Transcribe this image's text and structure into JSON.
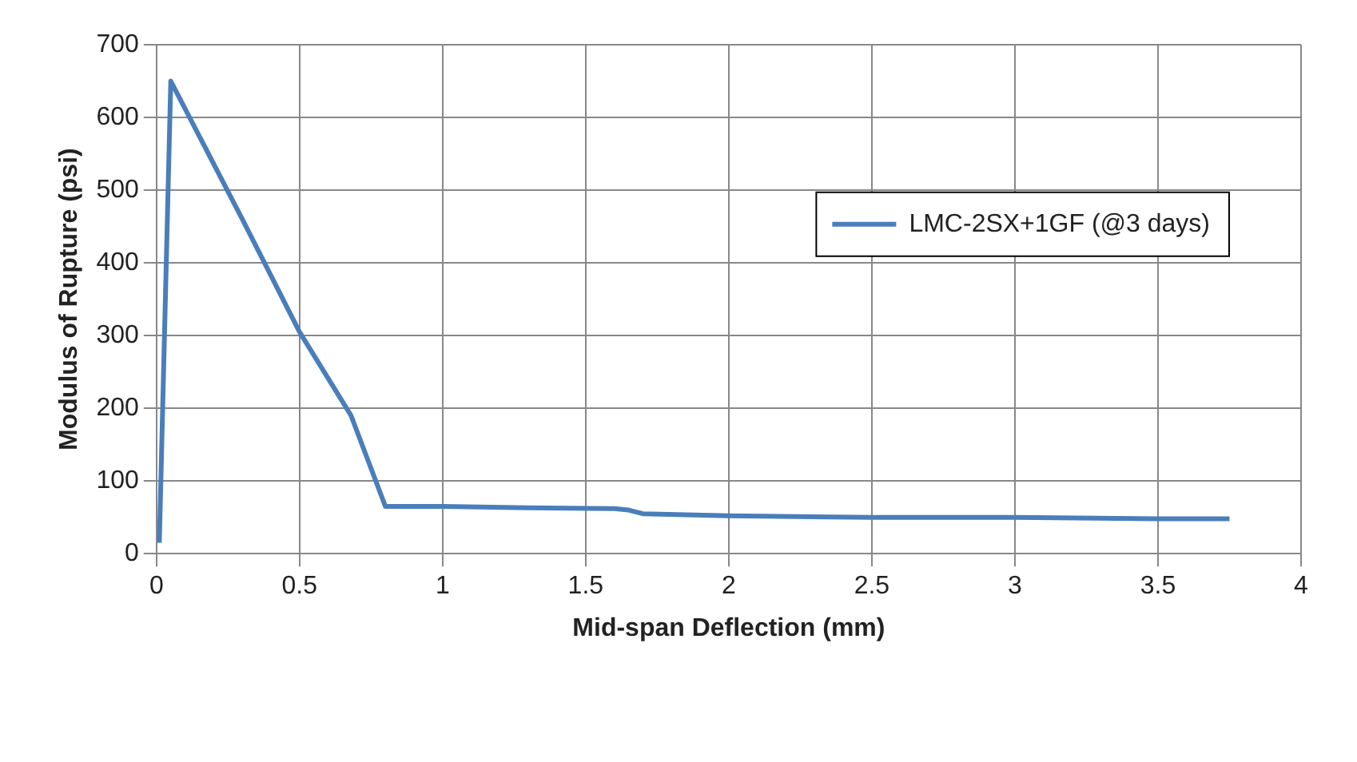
{
  "chart_data": {
    "type": "line",
    "xlabel": "Mid-span Deflection (mm)",
    "ylabel": "Modulus of Rupture (psi)",
    "series": [
      {
        "name": "LMC-2SX+1GF (@3 days)",
        "color": "#4a7ebb",
        "x": [
          0.01,
          0.05,
          0.3,
          0.5,
          0.68,
          0.8,
          1.0,
          1.3,
          1.6,
          1.65,
          1.7,
          2.0,
          2.5,
          3.0,
          3.5,
          3.75
        ],
        "values": [
          15,
          650,
          460,
          305,
          190,
          65,
          65,
          63,
          62,
          60,
          55,
          52,
          50,
          50,
          48,
          48
        ]
      }
    ],
    "xlim": [
      0,
      4
    ],
    "xticks": [
      0,
      0.5,
      1,
      1.5,
      2,
      2.5,
      3,
      3.5,
      4
    ],
    "ylim": [
      0,
      700
    ],
    "yticks": [
      0,
      100,
      200,
      300,
      400,
      500,
      600,
      700
    ],
    "grid": true,
    "legend": "top right",
    "marker": "none",
    "line_style": "solid"
  }
}
